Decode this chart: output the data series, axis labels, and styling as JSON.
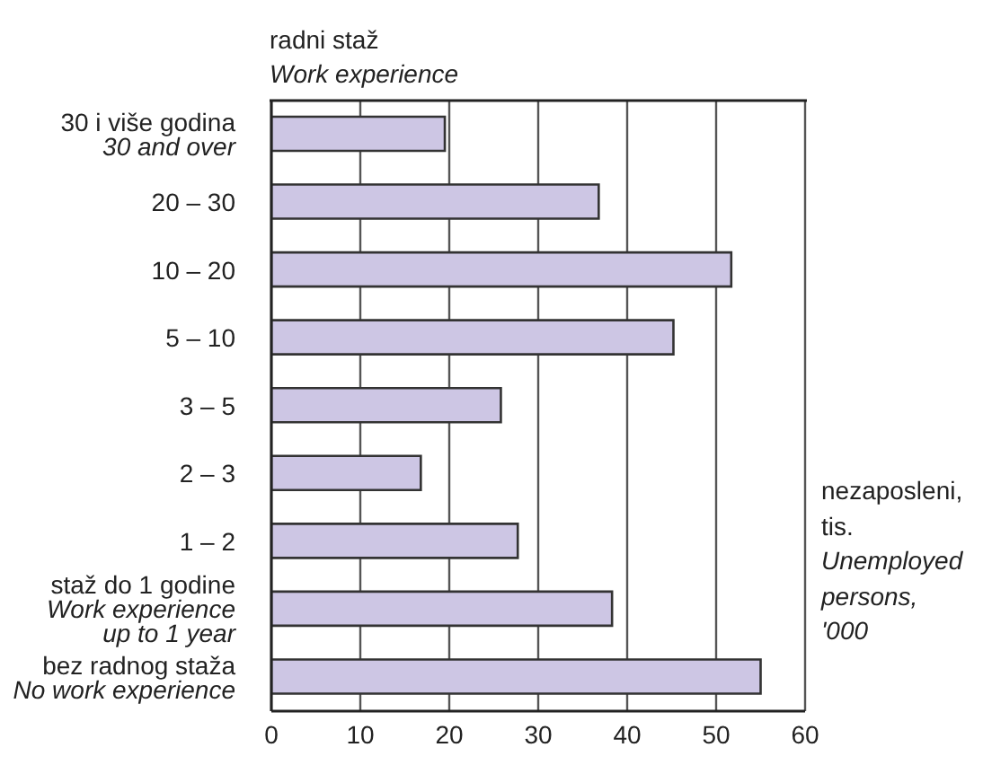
{
  "chart_data": {
    "type": "bar",
    "orientation": "horizontal",
    "ylabel": "radni staž\nWork experience",
    "xlabel": "nezaposleni, tis.\nUnemployed persons, '000",
    "categories": [
      "30 i više godina\n30 and over",
      "20 – 30",
      "10 – 20",
      "5 – 10",
      "3 – 5",
      "2 – 3",
      "1 – 2",
      "staž do 1 godine\nWork experience\nup to 1 year",
      "bez radnog staža\nNo work experience"
    ],
    "values": [
      19.5,
      36.8,
      51.7,
      45.2,
      25.8,
      16.8,
      27.7,
      38.3,
      55.0
    ],
    "color": "#cdc6e4",
    "xlim": [
      0,
      60
    ],
    "xticks": [
      0,
      10,
      20,
      30,
      40,
      50,
      60
    ],
    "grid": "x"
  }
}
